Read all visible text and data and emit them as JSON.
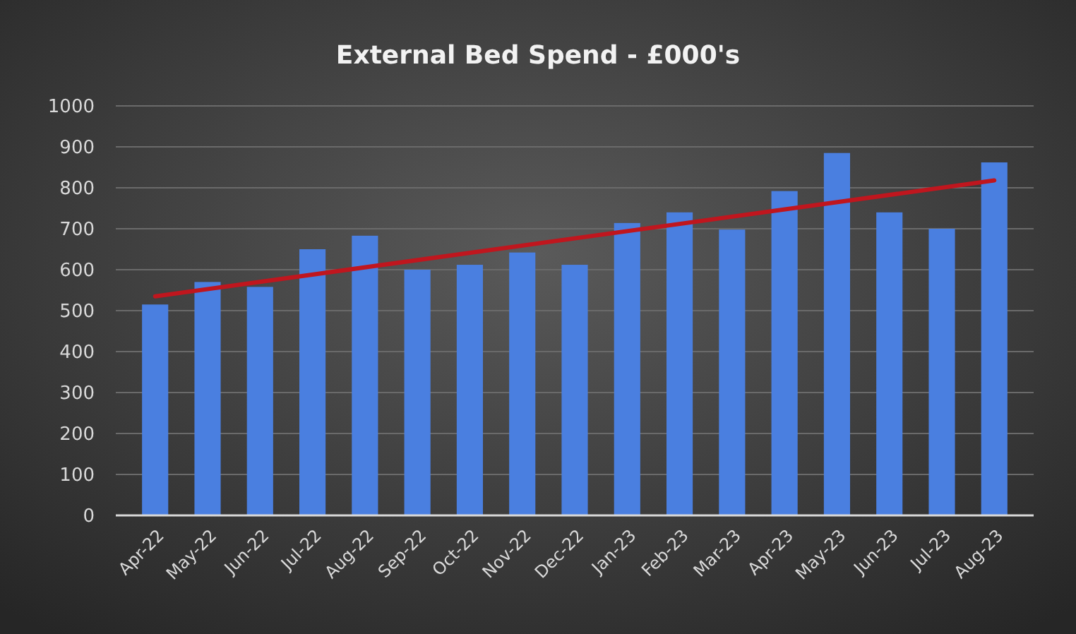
{
  "chart_data": {
    "type": "bar",
    "title": "External Bed Spend - £000's",
    "categories": [
      "Apr-22",
      "May-22",
      "Jun-22",
      "Jul-22",
      "Aug-22",
      "Sep-22",
      "Oct-22",
      "Nov-22",
      "Dec-22",
      "Jan-23",
      "Feb-23",
      "Mar-23",
      "Apr-23",
      "May-23",
      "Jun-23",
      "Jul-23",
      "Aug-23"
    ],
    "series": [
      {
        "color": "#4a7fe0",
        "values": [
          515,
          570,
          558,
          650,
          683,
          600,
          612,
          642,
          612,
          714,
          740,
          698,
          792,
          885,
          740,
          700,
          862
        ]
      },
      {
        "type": "line",
        "color": "#c0161e",
        "x": [
          "Apr-22",
          "Aug-23"
        ],
        "values": [
          535,
          818
        ]
      }
    ],
    "ylim": [
      0,
      1000
    ],
    "yticks": [
      0,
      100,
      200,
      300,
      400,
      500,
      600,
      700,
      800,
      900,
      1000
    ],
    "grid": "y"
  }
}
